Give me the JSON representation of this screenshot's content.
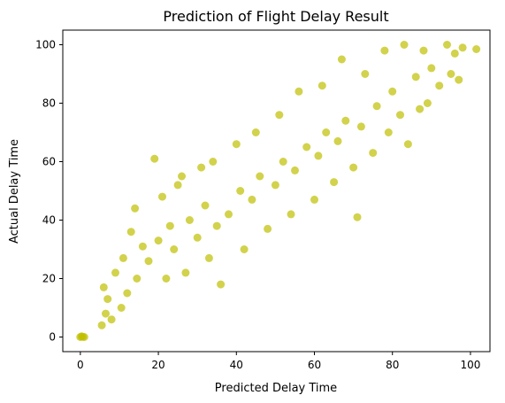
{
  "chart_data": {
    "type": "scatter",
    "title": "Prediction of Flight Delay Result",
    "xlabel": "Predicted Delay Time",
    "ylabel": "Actual Delay Time",
    "xlim": [
      -4.5,
      105
    ],
    "ylim": [
      -5,
      105
    ],
    "x_ticks": [
      0,
      20,
      40,
      60,
      80,
      100
    ],
    "y_ticks": [
      0,
      20,
      40,
      60,
      80,
      100
    ],
    "x_tick_labels": [
      "0",
      "20",
      "40",
      "60",
      "80",
      "100"
    ],
    "y_tick_labels": [
      "0",
      "20",
      "40",
      "60",
      "80",
      "100"
    ],
    "grid": false,
    "legend": false,
    "marker_color": "#bfbf00",
    "marker_alpha": 0.7,
    "series": [
      {
        "values": [
          {
            "x": 0.0,
            "y": 0.0
          },
          {
            "x": 0.3,
            "y": 0.2
          },
          {
            "x": 0.6,
            "y": 0.1
          },
          {
            "x": 1.0,
            "y": 0.0
          },
          {
            "x": 5.5,
            "y": 4.0
          },
          {
            "x": 6.5,
            "y": 8.0
          },
          {
            "x": 7.0,
            "y": 13.0
          },
          {
            "x": 6.0,
            "y": 17.0
          },
          {
            "x": 8.0,
            "y": 6.0
          },
          {
            "x": 9.0,
            "y": 22.0
          },
          {
            "x": 10.5,
            "y": 10.0
          },
          {
            "x": 11.0,
            "y": 27.0
          },
          {
            "x": 12.0,
            "y": 15.0
          },
          {
            "x": 13.0,
            "y": 36.0
          },
          {
            "x": 14.0,
            "y": 44.0
          },
          {
            "x": 14.5,
            "y": 20.0
          },
          {
            "x": 16.0,
            "y": 31.0
          },
          {
            "x": 17.5,
            "y": 26.0
          },
          {
            "x": 19.0,
            "y": 61.0
          },
          {
            "x": 20.0,
            "y": 33.0
          },
          {
            "x": 21.0,
            "y": 48.0
          },
          {
            "x": 22.0,
            "y": 20.0
          },
          {
            "x": 23.0,
            "y": 38.0
          },
          {
            "x": 24.0,
            "y": 30.0
          },
          {
            "x": 25.0,
            "y": 52.0
          },
          {
            "x": 26.0,
            "y": 55.0
          },
          {
            "x": 27.0,
            "y": 22.0
          },
          {
            "x": 28.0,
            "y": 40.0
          },
          {
            "x": 30.0,
            "y": 34.0
          },
          {
            "x": 31.0,
            "y": 58.0
          },
          {
            "x": 32.0,
            "y": 45.0
          },
          {
            "x": 33.0,
            "y": 27.0
          },
          {
            "x": 34.0,
            "y": 60.0
          },
          {
            "x": 35.0,
            "y": 38.0
          },
          {
            "x": 36.0,
            "y": 18.0
          },
          {
            "x": 38.0,
            "y": 42.0
          },
          {
            "x": 40.0,
            "y": 66.0
          },
          {
            "x": 41.0,
            "y": 50.0
          },
          {
            "x": 42.0,
            "y": 30.0
          },
          {
            "x": 44.0,
            "y": 47.0
          },
          {
            "x": 45.0,
            "y": 70.0
          },
          {
            "x": 46.0,
            "y": 55.0
          },
          {
            "x": 48.0,
            "y": 37.0
          },
          {
            "x": 50.0,
            "y": 52.0
          },
          {
            "x": 51.0,
            "y": 76.0
          },
          {
            "x": 52.0,
            "y": 60.0
          },
          {
            "x": 54.0,
            "y": 42.0
          },
          {
            "x": 55.0,
            "y": 57.0
          },
          {
            "x": 56.0,
            "y": 84.0
          },
          {
            "x": 58.0,
            "y": 65.0
          },
          {
            "x": 60.0,
            "y": 47.0
          },
          {
            "x": 61.0,
            "y": 62.0
          },
          {
            "x": 62.0,
            "y": 86.0
          },
          {
            "x": 63.0,
            "y": 70.0
          },
          {
            "x": 65.0,
            "y": 53.0
          },
          {
            "x": 66.0,
            "y": 67.0
          },
          {
            "x": 67.0,
            "y": 95.0
          },
          {
            "x": 68.0,
            "y": 74.0
          },
          {
            "x": 70.0,
            "y": 58.0
          },
          {
            "x": 71.0,
            "y": 41.0
          },
          {
            "x": 72.0,
            "y": 72.0
          },
          {
            "x": 73.0,
            "y": 90.0
          },
          {
            "x": 75.0,
            "y": 63.0
          },
          {
            "x": 76.0,
            "y": 79.0
          },
          {
            "x": 78.0,
            "y": 98.0
          },
          {
            "x": 79.0,
            "y": 70.0
          },
          {
            "x": 80.0,
            "y": 84.0
          },
          {
            "x": 82.0,
            "y": 76.0
          },
          {
            "x": 83.0,
            "y": 100.0
          },
          {
            "x": 84.0,
            "y": 66.0
          },
          {
            "x": 86.0,
            "y": 89.0
          },
          {
            "x": 87.0,
            "y": 78.0
          },
          {
            "x": 88.0,
            "y": 98.0
          },
          {
            "x": 89.0,
            "y": 80.0
          },
          {
            "x": 90.0,
            "y": 92.0
          },
          {
            "x": 92.0,
            "y": 86.0
          },
          {
            "x": 94.0,
            "y": 100.0
          },
          {
            "x": 95.0,
            "y": 90.0
          },
          {
            "x": 96.0,
            "y": 97.0
          },
          {
            "x": 97.0,
            "y": 88.0
          },
          {
            "x": 98.0,
            "y": 99.0
          },
          {
            "x": 101.5,
            "y": 98.5
          }
        ]
      }
    ]
  }
}
